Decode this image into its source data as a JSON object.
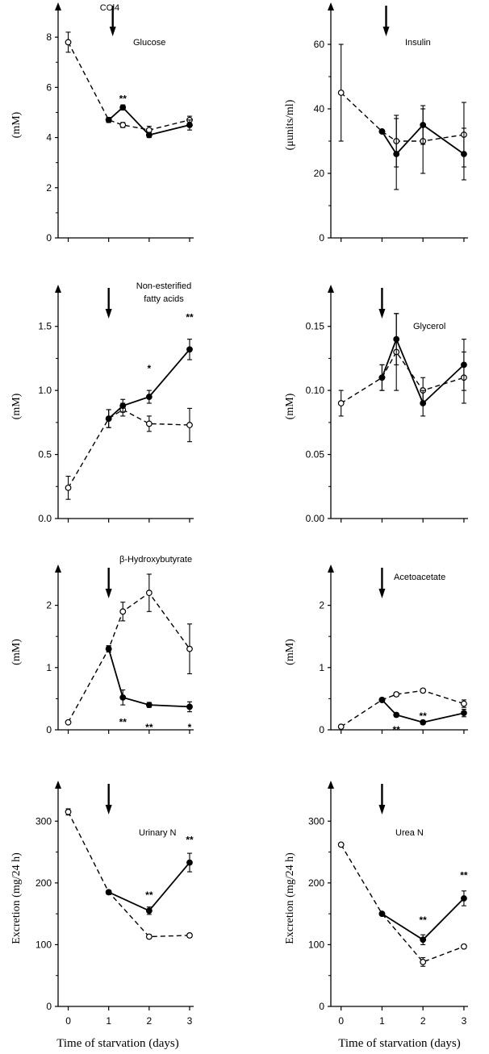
{
  "figure": {
    "x_tick_labels": [
      "0",
      "1",
      "2",
      "3"
    ],
    "x_axis_label": "Time of starvation (days)"
  },
  "legend": {
    "filled_circle_solid_line": "",
    "open_circle_dashed_line": ""
  },
  "chart_data": [
    {
      "id": "glucose",
      "type": "line",
      "title": "Glucose",
      "injection_label": "CCl4",
      "ylabel": "(mM)",
      "ylim": [
        0,
        9
      ],
      "yticks": [
        0,
        2,
        4,
        6,
        8
      ],
      "xlim": [
        -0.25,
        3.1
      ],
      "arrow_x": 1.1,
      "show_x_tick_labels": false,
      "series": [
        {
          "style": "open-dashed",
          "x": [
            0,
            1,
            1.35,
            2,
            3
          ],
          "y": [
            7.8,
            4.7,
            4.5,
            4.3,
            4.7
          ],
          "err": [
            0.4,
            0.1,
            0.1,
            0.15,
            0.15
          ]
        },
        {
          "style": "filled-solid",
          "x": [
            1,
            1.35,
            2,
            3
          ],
          "y": [
            4.7,
            5.2,
            4.1,
            4.5
          ],
          "err": [
            0.1,
            0.1,
            0.1,
            0.2
          ]
        }
      ],
      "significance": [
        {
          "x": 1.35,
          "y": 5.55,
          "text": "**"
        }
      ]
    },
    {
      "id": "insulin",
      "type": "line",
      "title": "Insulin",
      "injection_label": "",
      "ylabel": "(μunits/ml)",
      "ylim": [
        0,
        70
      ],
      "yticks": [
        0,
        20,
        40,
        60
      ],
      "xlim": [
        -0.25,
        3.1
      ],
      "arrow_x": 1.1,
      "show_x_tick_labels": false,
      "series": [
        {
          "style": "open-dashed",
          "x": [
            0,
            1,
            1.35,
            2,
            3
          ],
          "y": [
            45,
            33,
            30,
            30,
            32
          ],
          "err": [
            15,
            0,
            8,
            10,
            10
          ]
        },
        {
          "style": "filled-solid",
          "x": [
            1,
            1.35,
            2,
            3
          ],
          "y": [
            33,
            26,
            35,
            26
          ],
          "err": [
            0,
            11,
            6,
            8
          ]
        }
      ],
      "significance": []
    },
    {
      "id": "nefa",
      "type": "line",
      "title": "Non-esterified fatty acids",
      "injection_label": "",
      "ylabel": "(mM)",
      "ylim": [
        0,
        1.75
      ],
      "yticks": [
        0,
        0.5,
        1.0,
        1.5
      ],
      "xlim": [
        -0.25,
        3.1
      ],
      "arrow_x": 1.0,
      "show_x_tick_labels": false,
      "series": [
        {
          "style": "open-dashed",
          "x": [
            0,
            1,
            1.35,
            2,
            3
          ],
          "y": [
            0.24,
            0.78,
            0.85,
            0.74,
            0.73
          ],
          "err": [
            0.09,
            0.07,
            0.05,
            0.06,
            0.13
          ]
        },
        {
          "style": "filled-solid",
          "x": [
            1,
            1.35,
            2,
            3
          ],
          "y": [
            0.78,
            0.88,
            0.95,
            1.32
          ],
          "err": [
            0.07,
            0.05,
            0.05,
            0.08
          ]
        }
      ],
      "significance": [
        {
          "x": 2,
          "y": 1.17,
          "text": "*"
        },
        {
          "x": 3,
          "y": 1.57,
          "text": "**"
        }
      ]
    },
    {
      "id": "glycerol",
      "type": "line",
      "title": "Glycerol",
      "injection_label": "",
      "ylabel": "(mM)",
      "ylim": [
        0,
        0.175
      ],
      "yticks": [
        0,
        0.05,
        0.1,
        0.15
      ],
      "xlim": [
        -0.25,
        3.1
      ],
      "arrow_x": 1.0,
      "show_x_tick_labels": false,
      "series": [
        {
          "style": "open-dashed",
          "x": [
            0,
            1,
            1.35,
            2,
            3
          ],
          "y": [
            0.09,
            0.11,
            0.13,
            0.1,
            0.11
          ],
          "err": [
            0.01,
            0.01,
            0.03,
            0.01,
            0.02
          ]
        },
        {
          "style": "filled-solid",
          "x": [
            1,
            1.35,
            2,
            3
          ],
          "y": [
            0.11,
            0.14,
            0.09,
            0.12
          ],
          "err": [
            0.01,
            0.02,
            0.01,
            0.02
          ]
        }
      ],
      "significance": []
    },
    {
      "id": "hydroxybutyrate",
      "type": "line",
      "title": "β-Hydroxybutyrate",
      "injection_label": "",
      "ylabel": "(mM)",
      "ylim": [
        0,
        2.5
      ],
      "yticks": [
        0,
        1,
        2
      ],
      "xlim": [
        -0.25,
        3.1
      ],
      "arrow_x": 1.0,
      "show_x_tick_labels": false,
      "series": [
        {
          "style": "open-dashed",
          "x": [
            0,
            1,
            1.35,
            2,
            3
          ],
          "y": [
            0.12,
            1.3,
            1.9,
            2.2,
            1.3
          ],
          "err": [
            0.02,
            0.05,
            0.15,
            0.3,
            0.4
          ]
        },
        {
          "style": "filled-solid",
          "x": [
            1,
            1.35,
            2,
            3
          ],
          "y": [
            1.3,
            0.52,
            0.4,
            0.37
          ],
          "err": [
            0.05,
            0.12,
            0.04,
            0.08
          ]
        }
      ],
      "significance": [
        {
          "x": 1.35,
          "y": 0.12,
          "text": "**"
        },
        {
          "x": 2,
          "y": 0.04,
          "text": "**"
        },
        {
          "x": 3,
          "y": 0.04,
          "text": "*"
        }
      ]
    },
    {
      "id": "acetoacetate",
      "type": "line",
      "title": "Acetoacetate",
      "injection_label": "",
      "ylabel": "(mM)",
      "ylim": [
        0,
        2.5
      ],
      "yticks": [
        0,
        1,
        2
      ],
      "xlim": [
        -0.25,
        3.1
      ],
      "arrow_x": 1.0,
      "show_x_tick_labels": false,
      "series": [
        {
          "style": "open-dashed",
          "x": [
            0,
            1,
            1.35,
            2,
            3
          ],
          "y": [
            0.05,
            0.48,
            0.57,
            0.63,
            0.42
          ],
          "err": [
            0,
            0.03,
            0.03,
            0.03,
            0.06
          ]
        },
        {
          "style": "filled-solid",
          "x": [
            1,
            1.35,
            2,
            3
          ],
          "y": [
            0.48,
            0.24,
            0.12,
            0.27
          ],
          "err": [
            0.03,
            0.03,
            0.03,
            0.06
          ]
        }
      ],
      "significance": [
        {
          "x": 1.35,
          "y": 0.0,
          "text": "**"
        },
        {
          "x": 2,
          "y": 0.22,
          "text": "**"
        }
      ]
    },
    {
      "id": "urinary-n",
      "type": "line",
      "title": "Urinary N",
      "injection_label": "",
      "ylabel": "Excretion (mg/24 h)",
      "ylim": [
        0,
        350
      ],
      "yticks": [
        0,
        100,
        200,
        300
      ],
      "xlim": [
        -0.25,
        3.1
      ],
      "arrow_x": 1.0,
      "show_x_tick_labels": true,
      "series": [
        {
          "style": "open-dashed",
          "x": [
            0,
            1,
            2,
            3
          ],
          "y": [
            315,
            185,
            113,
            115
          ],
          "err": [
            5,
            3,
            3,
            3
          ]
        },
        {
          "style": "filled-solid",
          "x": [
            1,
            2,
            3
          ],
          "y": [
            185,
            155,
            233
          ],
          "err": [
            3,
            6,
            15
          ]
        }
      ],
      "significance": [
        {
          "x": 2,
          "y": 180,
          "text": "**"
        },
        {
          "x": 3,
          "y": 270,
          "text": "**"
        }
      ]
    },
    {
      "id": "urea-n",
      "type": "line",
      "title": "Urea N",
      "injection_label": "",
      "ylabel": "Excretion (mg/24 h)",
      "ylim": [
        0,
        350
      ],
      "yticks": [
        0,
        100,
        200,
        300
      ],
      "xlim": [
        -0.25,
        3.1
      ],
      "arrow_x": 1.0,
      "show_x_tick_labels": true,
      "series": [
        {
          "style": "open-dashed",
          "x": [
            0,
            1,
            2,
            3
          ],
          "y": [
            262,
            150,
            72,
            97
          ],
          "err": [
            0,
            0,
            7,
            3
          ]
        },
        {
          "style": "filled-solid",
          "x": [
            1,
            2,
            3
          ],
          "y": [
            150,
            108,
            175
          ],
          "err": [
            0,
            8,
            12
          ]
        }
      ],
      "significance": [
        {
          "x": 2,
          "y": 140,
          "text": "**"
        },
        {
          "x": 3,
          "y": 212,
          "text": "**"
        }
      ]
    }
  ]
}
